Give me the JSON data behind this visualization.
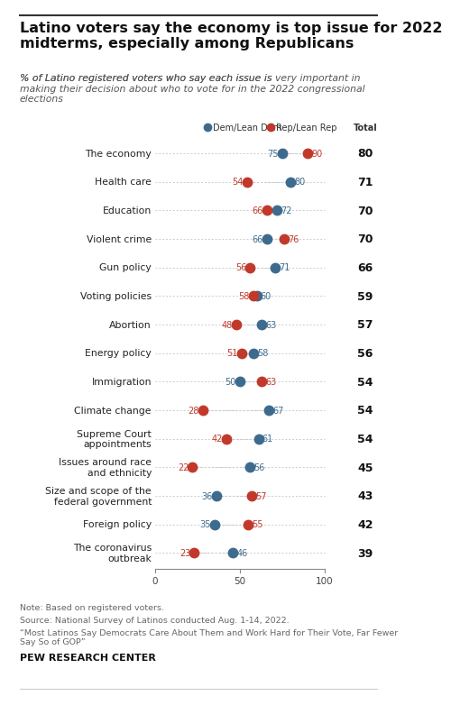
{
  "title": "Latino voters say the economy is top issue for 2022\nmidterms, especially among Republicans",
  "subtitle_plain": "% of Latino registered voters who say each issue is ",
  "subtitle_bold": "very important",
  "subtitle_rest": " in\nmaking their decision about who to vote for in the 2022 congressional\nelections",
  "categories": [
    "The economy",
    "Health care",
    "Education",
    "Violent crime",
    "Gun policy",
    "Voting policies",
    "Abortion",
    "Energy policy",
    "Immigration",
    "Climate change",
    "Supreme Court\nappointments",
    "Issues around race\nand ethnicity",
    "Size and scope of the\nfederal government",
    "Foreign policy",
    "The coronavirus\noutbreak"
  ],
  "dem_values": [
    75,
    80,
    72,
    66,
    71,
    60,
    63,
    58,
    50,
    67,
    61,
    56,
    36,
    35,
    46
  ],
  "rep_values": [
    90,
    54,
    66,
    76,
    56,
    58,
    48,
    51,
    63,
    28,
    42,
    22,
    57,
    55,
    23
  ],
  "totals": [
    80,
    71,
    70,
    70,
    66,
    59,
    57,
    56,
    54,
    54,
    54,
    45,
    43,
    42,
    39
  ],
  "dem_color": "#3d6b8e",
  "rep_color": "#c0392b",
  "legend_dem": "Dem/Lean Dem",
  "legend_rep": "Rep/Lean Rep",
  "legend_total": "Total",
  "note": "Note: Based on registered voters.",
  "source": "Source: National Survey of Latinos conducted Aug. 1-14, 2022.",
  "report": "“Most Latinos Say Democrats Care About Them and Work Hard for Their Vote, Far Fewer\nSay So of GOP”",
  "footer": "PEW RESEARCH CENTER"
}
